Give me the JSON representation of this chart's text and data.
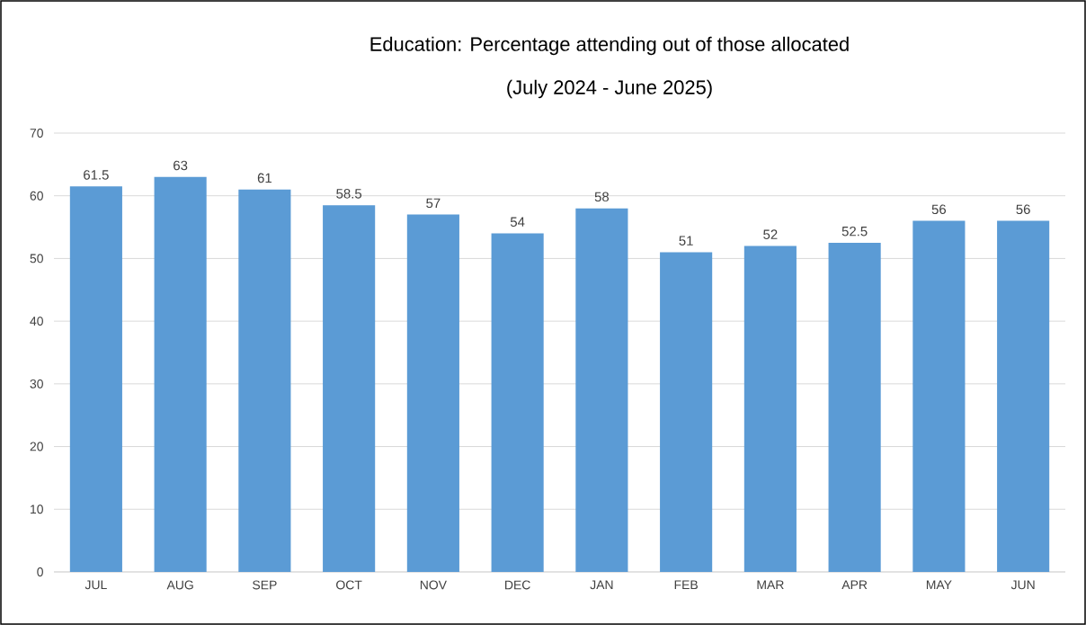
{
  "chart_data": {
    "type": "bar",
    "title": "Education: Percentage attending out of those allocated",
    "subtitle": "(July 2024 - June 2025)",
    "categories": [
      "JUL",
      "AUG",
      "SEP",
      "OCT",
      "NOV",
      "DEC",
      "JAN",
      "FEB",
      "MAR",
      "APR",
      "MAY",
      "JUN"
    ],
    "values": [
      61.5,
      63,
      61,
      58.5,
      57,
      54,
      58,
      51,
      52,
      52.5,
      56,
      56
    ],
    "color": "#5b9bd5",
    "ylim": [
      0,
      70
    ],
    "yticks": [
      0,
      10,
      20,
      30,
      40,
      50,
      60,
      70
    ],
    "grid": "y",
    "data_labels": true
  }
}
